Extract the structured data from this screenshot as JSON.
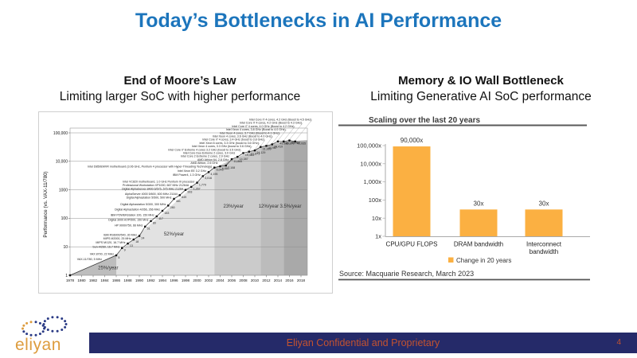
{
  "slide": {
    "title": "Today’s Bottlenecks in AI Performance",
    "footer": "Eliyan Confidential and Proprietary",
    "page_number": "4",
    "logo_text": "eliyan",
    "accent_blue": "#1c75bc",
    "footer_navy": "#252a69",
    "footer_text_color": "#c4532f",
    "logo_orange": "#dd9c3e"
  },
  "left_panel": {
    "heading": "End of Moore’s Law",
    "subheading": "Limiting larger SoC with higher performance"
  },
  "right_panel": {
    "heading": "Memory & IO Wall Bottleneck",
    "subheading": "Limiting Generative AI SoC performance"
  },
  "chart_data": [
    {
      "type": "scatter",
      "title": "",
      "xlabel": "",
      "ylabel": "Performance (vs. VAX-11/780)",
      "y_scale": "log",
      "xlim": [
        1978,
        2018
      ],
      "ylim": [
        1,
        100000
      ],
      "x_ticks": [
        1978,
        1980,
        1982,
        1984,
        1986,
        1988,
        1990,
        1992,
        1994,
        1996,
        1998,
        2000,
        2002,
        2004,
        2006,
        2008,
        2010,
        2012,
        2014,
        2016,
        2018
      ],
      "y_tick_values": [
        1,
        10,
        100,
        1000,
        10000,
        100000
      ],
      "y_tick_labels": [
        "1",
        "10",
        "100",
        "1000",
        "10,000",
        "100,000"
      ],
      "eras": [
        {
          "label": "25%/year",
          "from": 1978,
          "to": 1986,
          "start_value": 1,
          "end_value": 5.3,
          "shade": "#bdbdbd",
          "label_at": [
            1984.6,
            1.6
          ]
        },
        {
          "label": "52%/year",
          "from": 1986,
          "to": 2003,
          "start_value": 5.3,
          "end_value": 6000,
          "shade": "#e2e2e2",
          "label_at": [
            1996.0,
            25
          ]
        },
        {
          "label": "23%/year",
          "from": 2003,
          "to": 2011,
          "start_value": 6000,
          "end_value": 32000,
          "shade": "#cbcbcb",
          "label_at": [
            2006.3,
            240
          ]
        },
        {
          "label": "12%/year",
          "from": 2011,
          "to": 2015,
          "start_value": 32000,
          "end_value": 50000,
          "shade": "#bcbcbc",
          "label_at": [
            2012.4,
            240
          ]
        },
        {
          "label": "3.5%/year",
          "from": 2015,
          "to": 2018,
          "start_value": 50000,
          "end_value": 55000,
          "shade": "#a9a9a9",
          "label_at": [
            2016.2,
            240
          ]
        }
      ],
      "points": [
        {
          "year": 1978,
          "value": 1,
          "label": "VAX-11/780, 5 MHz"
        },
        {
          "year": 1986,
          "value": 5,
          "label": "VAX 8700, 22 MHz"
        },
        {
          "year": 1987,
          "value": 9,
          "label": "Sun-4/260, 16.7 MHz"
        },
        {
          "year": 1988,
          "value": 13,
          "label": "MIPS M/120, 16.7 MHz"
        },
        {
          "year": 1989,
          "value": 18,
          "label": "MIPS M2000, 25 MHz"
        },
        {
          "year": 1990,
          "value": 24,
          "label": "IBM RS6000/540, 30 MHz"
        },
        {
          "year": 1991,
          "value": 51,
          "label": "HP 9000/750, 66 MHz"
        },
        {
          "year": 1992,
          "value": 80,
          "label": "Digital 3000 AXP/500, 150 MHz"
        },
        {
          "year": 1993,
          "value": 117,
          "label": "IBM POWERstation 100, 150 MHz"
        },
        {
          "year": 1994,
          "value": 183,
          "label": "Digital Alphastation 4/266, 266 MHz"
        },
        {
          "year": 1995,
          "value": 280,
          "label": "Digital Alphastation 5/300, 300 MHz"
        },
        {
          "year": 1996,
          "value": 481,
          "label": "Digital Alphastation 5/500, 500 MHz"
        },
        {
          "year": 1997,
          "value": 649,
          "label": "AlphaServer 4000 5/600, 600 MHz 21164"
        },
        {
          "year": 1998,
          "value": 993,
          "label": "Digital AlphaServer 8400 6/575, 575 MHz 21264"
        },
        {
          "year": 1999,
          "value": 1267,
          "label": "Professional Workstation XP1000, 667 MHz 21264A"
        },
        {
          "year": 2000,
          "value": 1779,
          "label": "Intel VC820 motherboard, 1.0 GHz Pentium III processor"
        },
        {
          "year": 2001,
          "value": 3016,
          "label": "IBM Power4, 1.3 GHz"
        },
        {
          "year": 2002,
          "value": 4195,
          "label": "Intel Xeon EE 3.2 GHz"
        },
        {
          "year": 2003,
          "value": 6043,
          "label": "Intel D850EMVR motherboard (3.06 GHz, Pentium 4 processor with Hyper-Threading Technology)"
        },
        {
          "year": 2004,
          "value": 6681,
          "label": "AMD Athlon, 2.6 GHz"
        },
        {
          "year": 2005,
          "value": 7108,
          "label": "AMD Athlon 64, 2.8 GHz"
        },
        {
          "year": 2006,
          "value": 11865,
          "label": "Intel Core 2 Extreme 2 cores, 2.9 GHz"
        },
        {
          "year": 2007,
          "value": 14387,
          "label": "Intel Core Duo Extreme 2 cores, 3.0 GHz"
        },
        {
          "year": 2008,
          "value": 19484,
          "label": "Intel Core i7 Extreme 4 cores 3.2 GHz (boost to 3.5 GHz)"
        },
        {
          "year": 2009,
          "value": 21871,
          "label": "Intel Xeon 4 cores, 3.3 GHz (boost to 3.6 GHz)"
        },
        {
          "year": 2010,
          "value": 24129,
          "label": "Intel Xeon 6 cores, 3.3 GHz (boost to 3.6 GHz)"
        },
        {
          "year": 2011,
          "value": 31999,
          "label": "Intel Core i7 4 cores, 3.4 GHz (boost to 3.8 GHz)"
        },
        {
          "year": 2012,
          "value": 34967,
          "label": "Intel Xeon 4 cores, 3.6 GHz (Boost to 4.0 GHz)"
        },
        {
          "year": 2013,
          "value": 39419,
          "label": "Intel Xeon 4 cores, 3.7 GHz (Boost to 4.1 GHz)"
        },
        {
          "year": 2014,
          "value": 49935,
          "label": "Intel Xeon 4 cores, 3.8 GHz (Boost to 4.0 GHz)"
        },
        {
          "year": 2015,
          "value": 49870,
          "label": "Intel Core i7 4 cores, 4.0 GHz (Boost to 4.2 GHz)"
        },
        {
          "year": 2016,
          "value": 53967,
          "label": "Intel Core i7 4 cores, 4.2 GHz (Boost to 4.3 GHz)"
        },
        {
          "year": 2017,
          "value": 49935,
          "label": "Intel Core i7 4 cores, 4.2 GHz (Boost to 4.5 GHz)"
        }
      ]
    },
    {
      "type": "bar",
      "title": "Scaling over the last 20 years",
      "categories": [
        "CPU/GPU FLOPS",
        "DRAM bandwidth",
        "Interconnect bandwidth"
      ],
      "values": [
        90000,
        30,
        30
      ],
      "bar_labels": [
        "90,000x",
        "30x",
        "30x"
      ],
      "y_scale": "log",
      "ylim": [
        1,
        100000
      ],
      "y_tick_values": [
        1,
        10,
        100,
        1000,
        10000,
        100000
      ],
      "y_tick_labels": [
        "1x",
        "10x",
        "100x",
        "1,000x",
        "10,000x",
        "100,000x"
      ],
      "legend": "Change in 20 years",
      "legend_position": "bottom",
      "bar_color": "#fbb042",
      "source": "Source: Macquarie Research, March 2023"
    }
  ]
}
